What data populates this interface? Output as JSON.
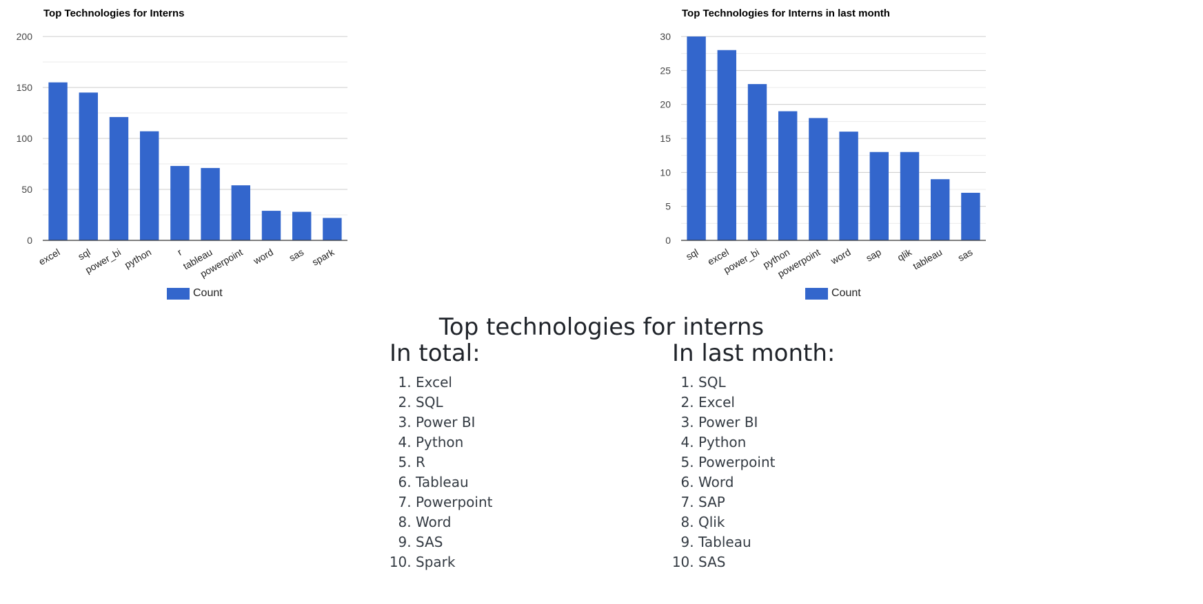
{
  "charts": {
    "left": {
      "title": "Top Technologies for Interns",
      "legend": "Count"
    },
    "right": {
      "title": "Top Technologies for Interns in last month",
      "legend": "Count"
    }
  },
  "colors": {
    "bar": "#3366cc",
    "grid": "#cccccc",
    "minor_grid": "#ebebeb",
    "axis": "#333333"
  },
  "chart_data": [
    {
      "type": "bar",
      "title": "Top Technologies for Interns",
      "categories": [
        "excel",
        "sql",
        "power_bi",
        "python",
        "r",
        "tableau",
        "powerpoint",
        "word",
        "sas",
        "spark"
      ],
      "series": [
        {
          "name": "Count",
          "values": [
            155,
            145,
            121,
            107,
            73,
            71,
            54,
            29,
            28,
            22
          ]
        }
      ],
      "ylim": [
        0,
        200
      ],
      "yticks": [
        0,
        50,
        100,
        150,
        200
      ],
      "grid": true,
      "legend": "bottom"
    },
    {
      "type": "bar",
      "title": "Top Technologies for Interns in last month",
      "categories": [
        "sql",
        "excel",
        "power_bi",
        "python",
        "powerpoint",
        "word",
        "sap",
        "qlik",
        "tableau",
        "sas"
      ],
      "series": [
        {
          "name": "Count",
          "values": [
            30,
            28,
            23,
            19,
            18,
            16,
            13,
            13,
            9,
            7
          ]
        }
      ],
      "ylim": [
        0,
        30
      ],
      "yticks": [
        0,
        5,
        10,
        15,
        20,
        25,
        30
      ],
      "grid": true,
      "legend": "bottom"
    }
  ],
  "summary": {
    "title": "Top technologies for interns",
    "total": {
      "heading": "In total:",
      "items": [
        "Excel",
        "SQL",
        "Power BI",
        "Python",
        "R",
        "Tableau",
        "Powerpoint",
        "Word",
        "SAS",
        "Spark"
      ]
    },
    "month": {
      "heading": "In last month:",
      "items": [
        "SQL",
        "Excel",
        "Power BI",
        "Python",
        "Powerpoint",
        "Word",
        "SAP",
        "Qlik",
        "Tableau",
        "SAS"
      ]
    }
  }
}
